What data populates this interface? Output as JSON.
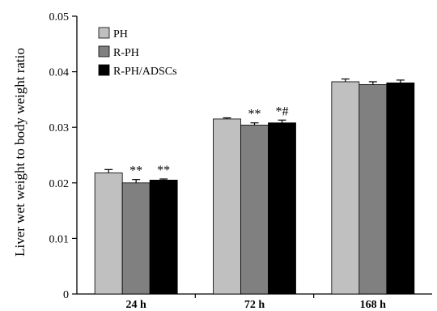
{
  "chart_data": {
    "type": "bar",
    "title": "",
    "xlabel": "",
    "ylabel": "Liver wet weight to body weight ratio",
    "ylim": [
      0,
      0.05
    ],
    "yticks": [
      "0",
      "0.01",
      "0.02",
      "0.03",
      "0.04",
      "0.05"
    ],
    "ytick_values": [
      0,
      0.01,
      0.02,
      0.03,
      0.04,
      0.05
    ],
    "categories": [
      "24 h",
      "72 h",
      "168 h"
    ],
    "series": [
      {
        "name": "PH",
        "color": "#c0c0c0",
        "values": [
          0.0218,
          0.0315,
          0.0382
        ],
        "errors": [
          0.0006,
          0.0002,
          0.0005
        ]
      },
      {
        "name": "R-PH",
        "color": "#808080",
        "values": [
          0.02,
          0.0304,
          0.0377
        ],
        "errors": [
          0.0006,
          0.0004,
          0.0005
        ]
      },
      {
        "name": "R-PH/ADSCs",
        "color": "#000000",
        "values": [
          0.0205,
          0.0308,
          0.038
        ],
        "errors": [
          0.0002,
          0.0005,
          0.0005
        ]
      }
    ],
    "annotations": [
      {
        "series": 1,
        "category": 0,
        "text": "**"
      },
      {
        "series": 2,
        "category": 0,
        "text": "**"
      },
      {
        "series": 1,
        "category": 1,
        "text": "**"
      },
      {
        "series": 2,
        "category": 1,
        "text": "*#"
      }
    ],
    "legend": "top-left",
    "grid": false
  }
}
